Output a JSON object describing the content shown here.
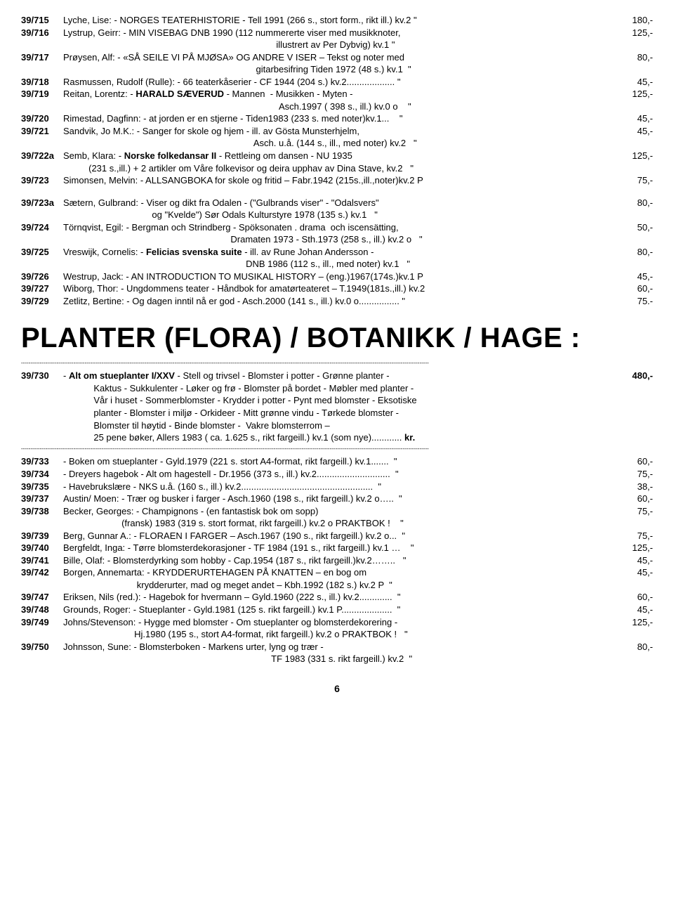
{
  "sections": [
    {
      "entries": [
        {
          "tag": "39/715",
          "body": "Lyche, Lise: - NORGES TEATERHISTORIE - Tell 1991 (266 s., stort form., rikt ill.) kv.2 \"",
          "price": "180,-"
        },
        {
          "tag": "39/716",
          "body": "Lystrup, Geirr: - MIN VISEBAG DNB 1990 (112 nummererte viser med musikknoter,\n                                                                                    illustrert av Per Dybvig) kv.1 \"",
          "price": "125,-"
        },
        {
          "tag": "39/717",
          "body": "Prøysen, Alf: - «SÅ SEILE VI PÅ MJØSA» OG ANDRE V ISER – Tekst og noter med\n                                                                            gitarbesifring Tiden 1972 (48 s.) kv.1  \"",
          "price": "80,-"
        },
        {
          "tag": "39/718",
          "body": "Rasmussen, Rudolf (Rulle): - 66 teaterkåserier - CF 1944 (204 s.) kv.2................... \"",
          "price": "45,-"
        },
        {
          "tag": "39/719",
          "body": "Reitan, Lorentz: - <b>HARALD SÆVERUD</b> - Mannen  - Musikken - Myten -\n                                                                                     Asch.1997 ( 398 s., ill.) kv.0 o    \"",
          "price": "125,-"
        },
        {
          "tag": "39/720",
          "body": "Rimestad, Dagfinn: - at jorden er en stjerne - Tiden1983 (233 s. med noter)kv.1...    \"",
          "price": "45,-"
        },
        {
          "tag": "39/721",
          "body": "Sandvik, Jo M.K.: - Sanger for skole og hjem - ill. av Gösta Munsterhjelm,\n                                                                           Asch. u.å. (144 s., ill., med noter) kv.2   \"",
          "price": "45,-"
        },
        {
          "tag": "39/722a",
          "body": "Semb, Klara: - <b>Norske folkedansar II</b> - Rettleing om dansen - NU 1935\n          (231 s.,ill.) + 2 artikler om Våre folkevisor og deira upphav av Dina Stave, kv.2   \"",
          "price": "125,-"
        },
        {
          "tag": "39/723",
          "body": "Simonsen, Melvin: - ALLSANGBOKA for skole og fritid – Fabr.1942 (215s.,ill.,noter)kv.2 P",
          "price": "75,-"
        }
      ]
    },
    {
      "gap": true,
      "entries": [
        {
          "tag": "39/723a",
          "body": "Sætern, Gulbrand: - Viser og dikt fra Odalen - (\"Gulbrands viser\" - \"Odalsvers\"\n                                   og \"Kvelde\") Sør Odals Kulturstyre 1978 (135 s.) kv.1   \"",
          "price": "80,-"
        },
        {
          "tag": "39/724",
          "body": "Törnqvist, Egil: - Bergman och Strindberg - Spöksonaten . drama  och iscensätting,\n                                                                  Dramaten 1973 - Sth.1973 (258 s., ill.) kv.2 o   \"",
          "price": "50,-"
        },
        {
          "tag": "39/725",
          "body": "Vreswijk, Cornelis: - <b>Felicias svenska suite</b> - ill. av Rune Johan Andersson -\n                                                                        DNB 1986 (112 s., ill., med noter) kv.1   \"",
          "price": "80,-"
        },
        {
          "tag": "39/726",
          "body": "Westrup, Jack: - AN INTRODUCTION TO MUSIKAL HISTORY – (eng.)1967(174s.)kv.1 P",
          "price": "45,-"
        },
        {
          "tag": "39/727",
          "body": "Wiborg, Thor: - Ungdommens teater - Håndbok for amatørteateret – T.1949(181s.,ill.) kv.2",
          "price": "60,-"
        },
        {
          "tag": "39/729",
          "body": "Zetlitz, Bertine: - Og dagen inntil nå er god - Asch.2000 (141 s., ill.) kv.0 o................ \"",
          "price": "75.-"
        }
      ]
    },
    {
      "heading": "PLANTER (FLORA) / BOTANIKK / HAGE :",
      "hr": true,
      "entries": [
        {
          "tag": "39/730",
          "body": "- <b>Alt om stueplanter I/XXV</b> - Stell og trivsel - Blomster i potter - Grønne planter -\n            Kaktus - Sukkulenter - Løker og frø - Blomster på bordet - Møbler med planter -\n            Vår i huset - Sommerblomster - Krydder i potter - Pynt med blomster - Eksotiske\n            planter - Blomster i miljø - Orkideer - Mitt grønne vindu - Tørkede blomster -\n            Blomster til høytid - Binde blomster -  Vakre blomsterrom –\n            25 pene bøker, Allers 1983 ( ca. 1.625 s., rikt fargeill.) kv.1 (som nye)............ <b>kr.</b>",
          "price": "<b>480,-</b>"
        }
      ],
      "hr_after": true
    },
    {
      "entries": [
        {
          "tag": "39/733",
          "body": "- Boken om stueplanter - Gyld.1979 (221 s. stort A4-format, rikt fargeill.) kv.1.......  \"",
          "price": "60,-"
        },
        {
          "tag": "39/734",
          "body": "- Dreyers hagebok - Alt om hagestell - Dr.1956 (373 s., ill.) kv.2.............................  \"",
          "price": "75,-"
        },
        {
          "tag": "39/735",
          "body": "- Havebrukslære - NKS u.å. (160 s., ill.) kv.2....................................................  \"",
          "price": "38,-"
        },
        {
          "tag": "39/737",
          "body": "Austin/ Moen: - Trær og busker i farger - Asch.1960 (198 s., rikt fargeill.) kv.2 o…..  \"",
          "price": "60,-"
        },
        {
          "tag": "39/738",
          "body": "Becker, Georges: - Champignons - (en fantastisk bok om sopp)\n                       (fransk) 1983 (319 s. stort format, rikt fargeill.) kv.2 o PRAKTBOK !    \"",
          "price": "75,-"
        },
        {
          "tag": "39/739",
          "body": "Berg, Gunnar A.: - FLORAEN I FARGER – Asch.1967 (190 s., rikt fargeill.) kv.2 o...  \"",
          "price": "75,-"
        },
        {
          "tag": "39/740",
          "body": "Bergfeldt, Inga: - Tørre blomsterdekorasjoner - TF 1984 (191 s., rikt fargeill.) kv.1 …    \"",
          "price": "125,-"
        },
        {
          "tag": "39/741",
          "body": "Bille, Olaf: - Blomsterdyrking som hobby - Cap.1954 (187 s., rikt fargeill.)kv.2……..   \"",
          "price": "45,-"
        },
        {
          "tag": "39/742",
          "body": "Borgen, Annemarta: - KRYDDERURTEHAGEN PÅ KNATTEN – en bog om\n                             krydderurter, mad og meget andet – Kbh.1992 (182 s.) kv.2 P  \"",
          "price": "45,-"
        },
        {
          "tag": "39/747",
          "body": "Eriksen, Nils (red.): - Hagebok for hvermann – Gyld.1960 (222 s., ill.) kv.2.............  \"",
          "price": "60,-"
        },
        {
          "tag": "39/748",
          "body": "Grounds, Roger: - Stueplanter - Gyld.1981 (125 s. rikt fargeill.) kv.1 P....................  \"",
          "price": "45,-"
        },
        {
          "tag": "39/749",
          "body": "Johns/Stevenson: - Hygge med blomster - Om stueplanter og blomsterdekorering -\n                            Hj.1980 (195 s., stort A4-format, rikt fargeill.) kv.2 o PRAKTBOK !   \"",
          "price": "125,-"
        },
        {
          "tag": "39/750",
          "body": "Johnsson, Sune: - Blomsterboken - Markens urter, lyng og trær -\n                                                                                  TF 1983 (331 s. rikt fargeill.) kv.2  \"",
          "price": "80,-"
        }
      ]
    }
  ],
  "page_number": "6",
  "dash_line": "--------------------------------------------------------------------------------------------------------------------------------------------------------------------------------------------------------------------------"
}
